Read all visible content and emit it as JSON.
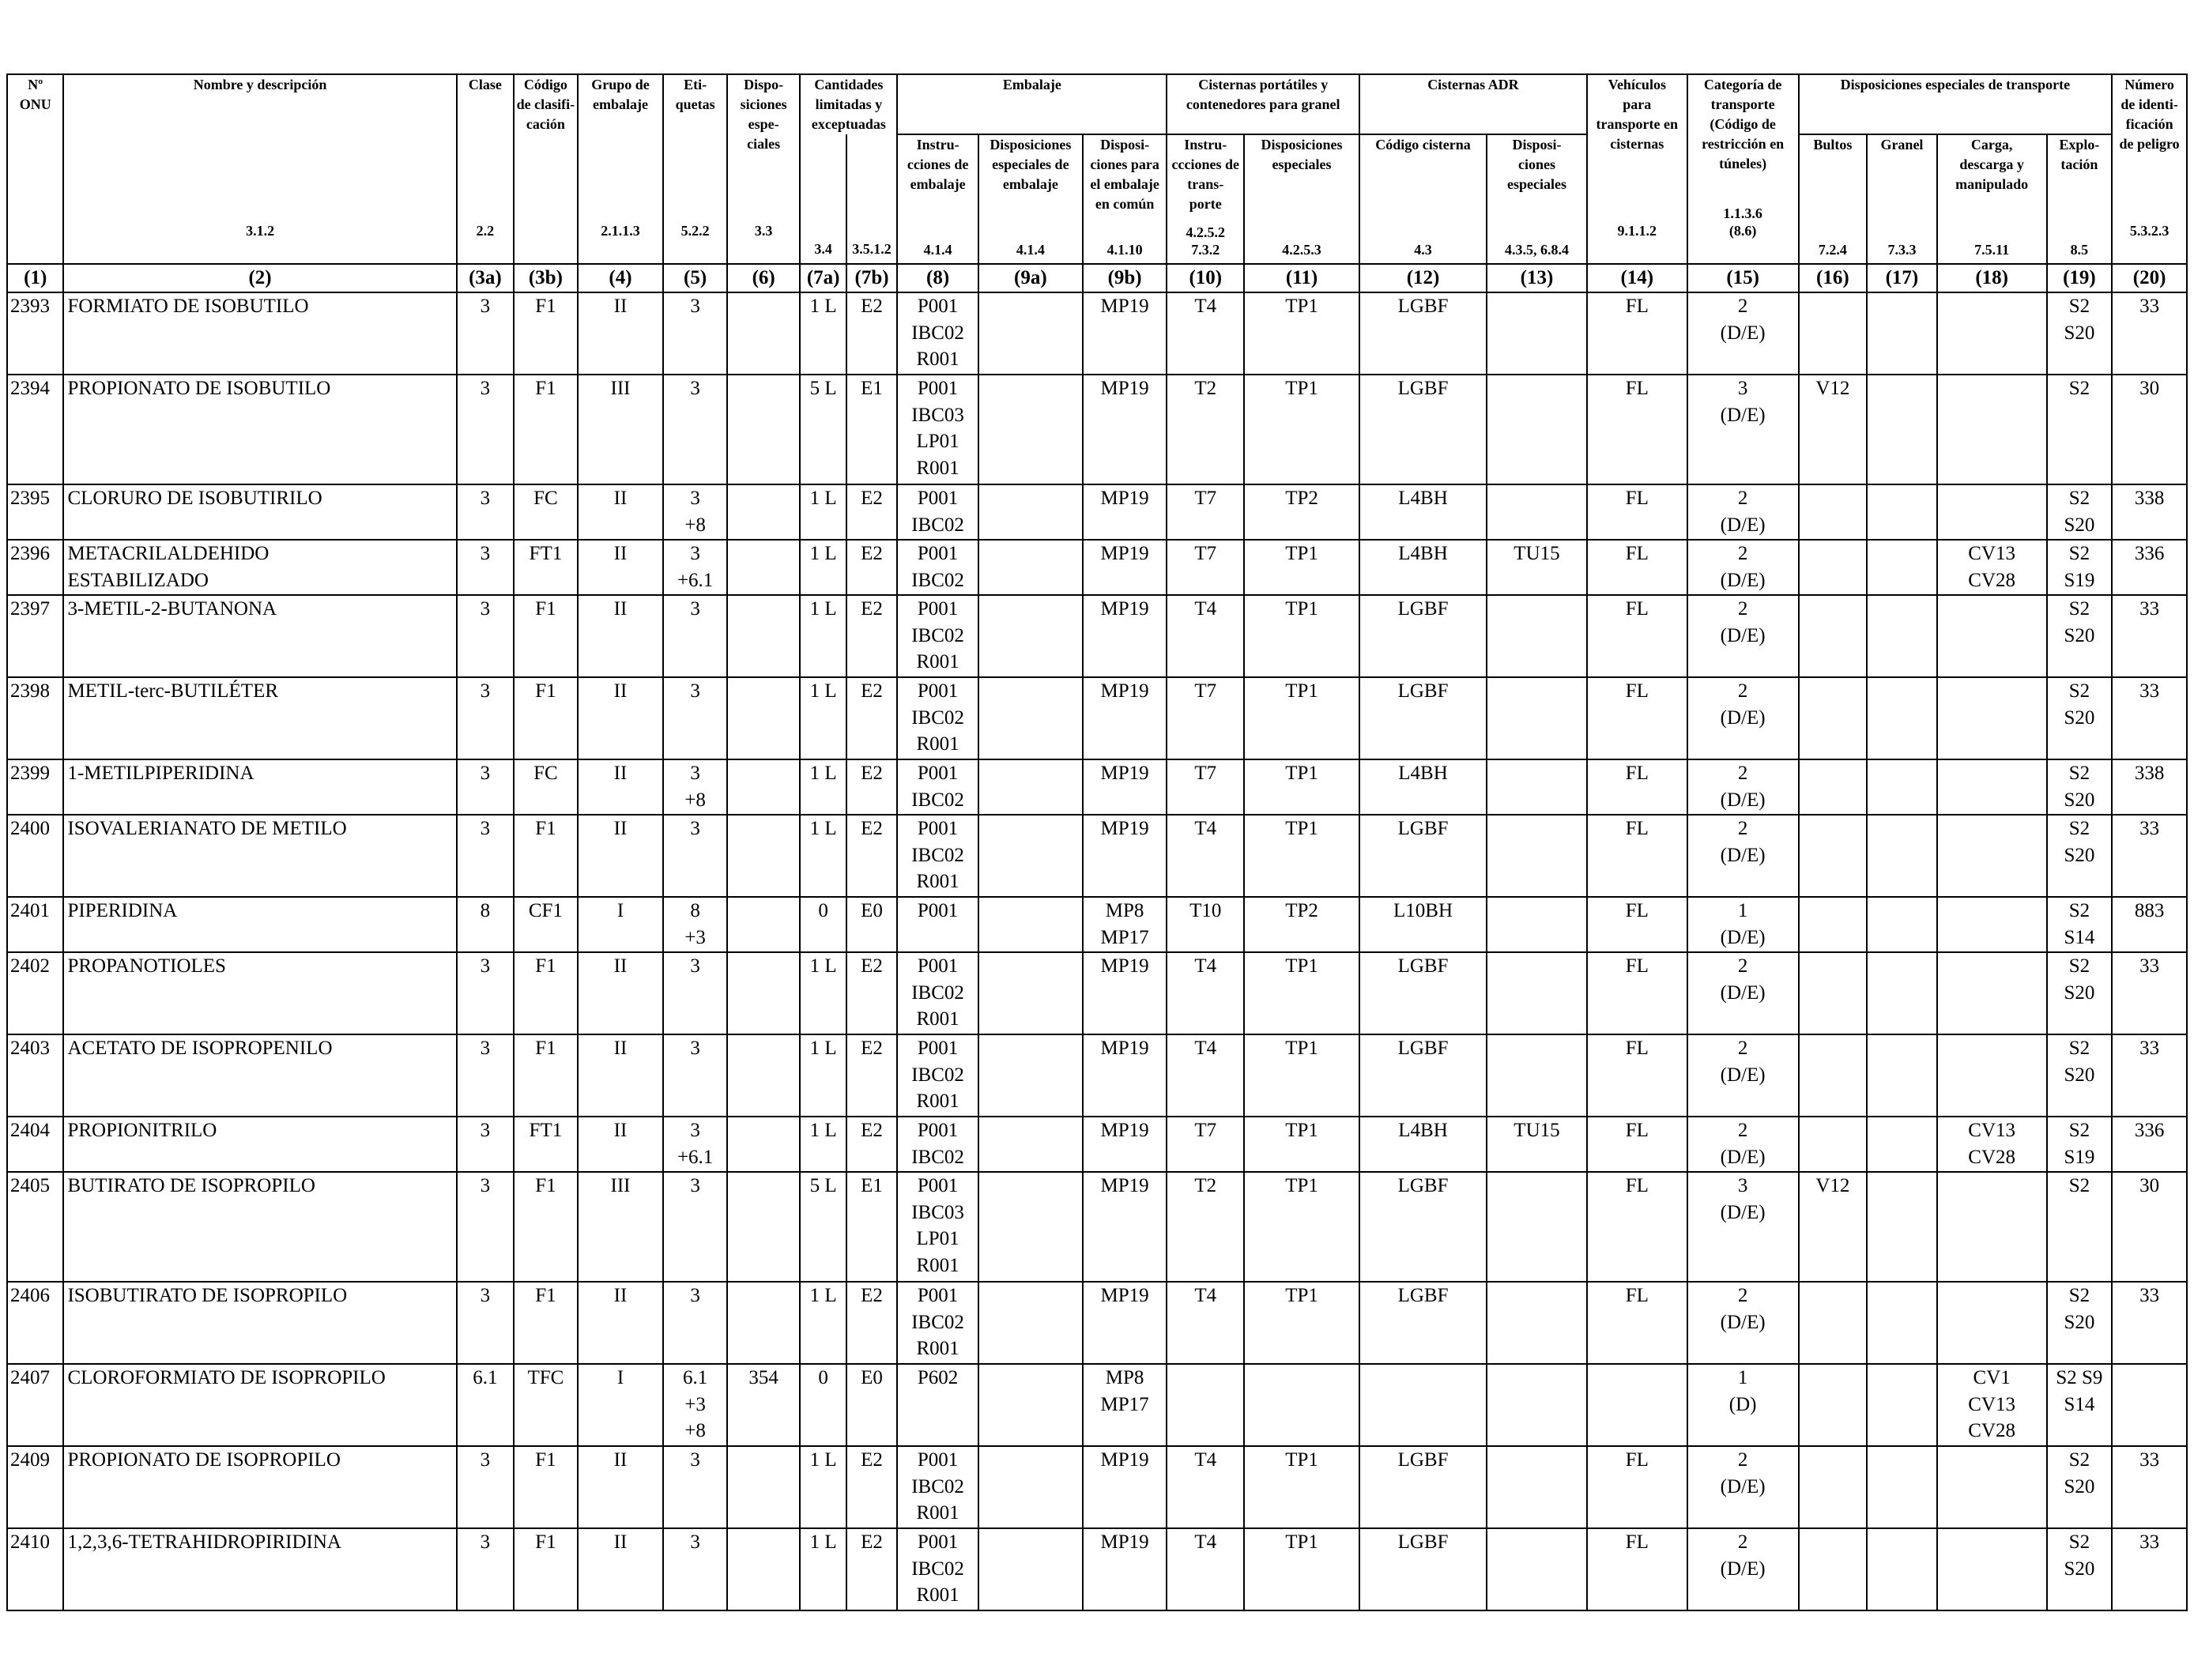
{
  "columns": [
    {
      "key": "un",
      "title": "Nº\nONU",
      "ref": "",
      "num": "(1)"
    },
    {
      "key": "name",
      "title": "Nombre y descripción",
      "ref": "3.1.2",
      "num": "(2)"
    },
    {
      "key": "clase",
      "title": "Clase",
      "ref": "2.2",
      "num": "(3a)"
    },
    {
      "key": "codigo",
      "title": "Código\nde clasifi-\ncación",
      "ref": "",
      "num": "(3b)"
    },
    {
      "key": "grupo",
      "title": "Grupo de\nembalaje",
      "ref": "2.1.1.3",
      "num": "(4)"
    },
    {
      "key": "etiquetas",
      "title": "Eti-\nquetas",
      "ref": "5.2.2",
      "num": "(5)"
    },
    {
      "key": "disp",
      "title": "Dispo-\nsiciones\nespe-\nciales",
      "ref": "3.3",
      "num": "(6)"
    },
    {
      "key": "lq",
      "title": "",
      "ref": "3.4",
      "num": "(7a)"
    },
    {
      "key": "eq",
      "title": "",
      "ref": "3.5.1.2",
      "num": "(7b)"
    },
    {
      "key": "instr",
      "title": "Instru-\ncciones de\nembalaje",
      "ref": "4.1.4",
      "num": "(8)"
    },
    {
      "key": "dispemb",
      "title": "Disposiciones\nespeciales de\nembalaje",
      "ref": "4.1.4",
      "num": "(9a)"
    },
    {
      "key": "comun",
      "title": "Disposi-\nciones para\nel embalaje\nen común",
      "ref": "4.1.10",
      "num": "(9b)"
    },
    {
      "key": "tinstr",
      "title": "Instru-\nccciones de\ntrans-\nporte",
      "ref": "4.2.5.2\n7.3.2",
      "num": "(10)"
    },
    {
      "key": "tdisp",
      "title": "Disposiciones\nespeciales",
      "ref": "4.2.5.3",
      "num": "(11)"
    },
    {
      "key": "cisterna",
      "title": "Código cisterna",
      "ref": "4.3",
      "num": "(12)"
    },
    {
      "key": "cdisp",
      "title": "Disposi-\nciones\nespeciales",
      "ref": "4.3.5, 6.8.4",
      "num": "(13)"
    },
    {
      "key": "vehiculos",
      "title": "Vehículos\npara\ntransporte en\ncisternas",
      "ref": "9.1.1.2",
      "num": "(14)"
    },
    {
      "key": "categoria",
      "title": "Categoría de\ntransporte\n(Código de\nrestricción en\ntúneles)",
      "ref": "1.1.3.6\n(8.6)",
      "num": "(15)"
    },
    {
      "key": "bultos",
      "title": "Bultos",
      "ref": "7.2.4",
      "num": "(16)"
    },
    {
      "key": "granel",
      "title": "Granel",
      "ref": "7.3.3",
      "num": "(17)"
    },
    {
      "key": "carga",
      "title": "Carga,\ndescarga y\nmanipulado",
      "ref": "7.5.11",
      "num": "(18)"
    },
    {
      "key": "explo",
      "title": "Explo-\ntación",
      "ref": "8.5",
      "num": "(19)"
    },
    {
      "key": "peligro",
      "title": "Número\nde identi-\nficación\nde peligro",
      "ref": "5.3.2.3",
      "num": "(20)"
    }
  ],
  "groups": {
    "cantidades": "Cantidades\nlimitadas y\nexceptuadas",
    "embalaje": "Embalaje",
    "portatiles": "Cisternas portátiles y\ncontenedores para granel",
    "adr": "Cisternas ADR",
    "transporte": "Disposiciones especiales de transporte"
  },
  "rows": [
    {
      "un": "2393",
      "name": "FORMIATO DE ISOBUTILO",
      "clase": "3",
      "codigo": "F1",
      "grupo": "II",
      "etiquetas": "3",
      "disp": "",
      "lq": "1 L",
      "eq": "E2",
      "instr": "P001\nIBC02\nR001",
      "dispemb": "",
      "comun": "MP19",
      "tinstr": "T4",
      "tdisp": "TP1",
      "cisterna": "LGBF",
      "cdisp": "",
      "vehiculos": "FL",
      "categoria": "2\n(D/E)",
      "bultos": "",
      "granel": "",
      "carga": "",
      "explo": "S2\nS20",
      "peligro": "33"
    },
    {
      "un": "2394",
      "name": "PROPIONATO DE ISOBUTILO",
      "clase": "3",
      "codigo": "F1",
      "grupo": "III",
      "etiquetas": "3",
      "disp": "",
      "lq": "5 L",
      "eq": "E1",
      "instr": "P001\nIBC03\nLP01\nR001",
      "dispemb": "",
      "comun": "MP19",
      "tinstr": "T2",
      "tdisp": "TP1",
      "cisterna": "LGBF",
      "cdisp": "",
      "vehiculos": "FL",
      "categoria": "3\n(D/E)",
      "bultos": "V12",
      "granel": "",
      "carga": "",
      "explo": "S2",
      "peligro": "30"
    },
    {
      "un": "2395",
      "name": "CLORURO DE ISOBUTIRILO",
      "clase": "3",
      "codigo": "FC",
      "grupo": "II",
      "etiquetas": "3\n+8",
      "disp": "",
      "lq": "1 L",
      "eq": "E2",
      "instr": "P001\nIBC02",
      "dispemb": "",
      "comun": "MP19",
      "tinstr": "T7",
      "tdisp": "TP2",
      "cisterna": "L4BH",
      "cdisp": "",
      "vehiculos": "FL",
      "categoria": "2\n(D/E)",
      "bultos": "",
      "granel": "",
      "carga": "",
      "explo": "S2\nS20",
      "peligro": "338"
    },
    {
      "un": "2396",
      "name": "METACRILALDEHIDO\nESTABILIZADO",
      "clase": "3",
      "codigo": "FT1",
      "grupo": "II",
      "etiquetas": "3\n+6.1",
      "disp": "",
      "lq": "1 L",
      "eq": "E2",
      "instr": "P001\nIBC02",
      "dispemb": "",
      "comun": "MP19",
      "tinstr": "T7",
      "tdisp": "TP1",
      "cisterna": "L4BH",
      "cdisp": "TU15",
      "vehiculos": "FL",
      "categoria": "2\n(D/E)",
      "bultos": "",
      "granel": "",
      "carga": "CV13\nCV28",
      "explo": "S2\nS19",
      "peligro": "336"
    },
    {
      "un": "2397",
      "name": "3-METIL-2-BUTANONA",
      "clase": "3",
      "codigo": "F1",
      "grupo": "II",
      "etiquetas": "3",
      "disp": "",
      "lq": "1 L",
      "eq": "E2",
      "instr": "P001\nIBC02\nR001",
      "dispemb": "",
      "comun": "MP19",
      "tinstr": "T4",
      "tdisp": "TP1",
      "cisterna": "LGBF",
      "cdisp": "",
      "vehiculos": "FL",
      "categoria": "2\n(D/E)",
      "bultos": "",
      "granel": "",
      "carga": "",
      "explo": "S2\nS20",
      "peligro": "33"
    },
    {
      "un": "2398",
      "name": "METIL-terc-BUTILÉTER",
      "clase": "3",
      "codigo": "F1",
      "grupo": "II",
      "etiquetas": "3",
      "disp": "",
      "lq": "1 L",
      "eq": "E2",
      "instr": "P001\nIBC02\nR001",
      "dispemb": "",
      "comun": "MP19",
      "tinstr": "T7",
      "tdisp": "TP1",
      "cisterna": "LGBF",
      "cdisp": "",
      "vehiculos": "FL",
      "categoria": "2\n(D/E)",
      "bultos": "",
      "granel": "",
      "carga": "",
      "explo": "S2\nS20",
      "peligro": "33"
    },
    {
      "un": "2399",
      "name": "1-METILPIPERIDINA",
      "clase": "3",
      "codigo": "FC",
      "grupo": "II",
      "etiquetas": "3\n+8",
      "disp": "",
      "lq": "1 L",
      "eq": "E2",
      "instr": "P001\nIBC02",
      "dispemb": "",
      "comun": "MP19",
      "tinstr": "T7",
      "tdisp": "TP1",
      "cisterna": "L4BH",
      "cdisp": "",
      "vehiculos": "FL",
      "categoria": "2\n(D/E)",
      "bultos": "",
      "granel": "",
      "carga": "",
      "explo": "S2\nS20",
      "peligro": "338"
    },
    {
      "un": "2400",
      "name": "ISOVALERIANATO DE METILO",
      "clase": "3",
      "codigo": "F1",
      "grupo": "II",
      "etiquetas": "3",
      "disp": "",
      "lq": "1 L",
      "eq": "E2",
      "instr": "P001\nIBC02\nR001",
      "dispemb": "",
      "comun": "MP19",
      "tinstr": "T4",
      "tdisp": "TP1",
      "cisterna": "LGBF",
      "cdisp": "",
      "vehiculos": "FL",
      "categoria": "2\n(D/E)",
      "bultos": "",
      "granel": "",
      "carga": "",
      "explo": "S2\nS20",
      "peligro": "33"
    },
    {
      "un": "2401",
      "name": "PIPERIDINA",
      "clase": "8",
      "codigo": "CF1",
      "grupo": "I",
      "etiquetas": "8\n+3",
      "disp": "",
      "lq": "0",
      "eq": "E0",
      "instr": "P001",
      "dispemb": "",
      "comun": "MP8\nMP17",
      "tinstr": "T10",
      "tdisp": "TP2",
      "cisterna": "L10BH",
      "cdisp": "",
      "vehiculos": "FL",
      "categoria": "1\n(D/E)",
      "bultos": "",
      "granel": "",
      "carga": "",
      "explo": "S2\nS14",
      "peligro": "883"
    },
    {
      "un": "2402",
      "name": "PROPANOTIOLES",
      "clase": "3",
      "codigo": "F1",
      "grupo": "II",
      "etiquetas": "3",
      "disp": "",
      "lq": "1 L",
      "eq": "E2",
      "instr": "P001\nIBC02\nR001",
      "dispemb": "",
      "comun": "MP19",
      "tinstr": "T4",
      "tdisp": "TP1",
      "cisterna": "LGBF",
      "cdisp": "",
      "vehiculos": "FL",
      "categoria": "2\n(D/E)",
      "bultos": "",
      "granel": "",
      "carga": "",
      "explo": "S2\nS20",
      "peligro": "33"
    },
    {
      "un": "2403",
      "name": "ACETATO DE ISOPROPENILO",
      "clase": "3",
      "codigo": "F1",
      "grupo": "II",
      "etiquetas": "3",
      "disp": "",
      "lq": "1 L",
      "eq": "E2",
      "instr": "P001\nIBC02\nR001",
      "dispemb": "",
      "comun": "MP19",
      "tinstr": "T4",
      "tdisp": "TP1",
      "cisterna": "LGBF",
      "cdisp": "",
      "vehiculos": "FL",
      "categoria": "2\n(D/E)",
      "bultos": "",
      "granel": "",
      "carga": "",
      "explo": "S2\nS20",
      "peligro": "33"
    },
    {
      "un": "2404",
      "name": "PROPIONITRILO",
      "clase": "3",
      "codigo": "FT1",
      "grupo": "II",
      "etiquetas": "3\n+6.1",
      "disp": "",
      "lq": "1 L",
      "eq": "E2",
      "instr": "P001\nIBC02",
      "dispemb": "",
      "comun": "MP19",
      "tinstr": "T7",
      "tdisp": "TP1",
      "cisterna": "L4BH",
      "cdisp": "TU15",
      "vehiculos": "FL",
      "categoria": "2\n(D/E)",
      "bultos": "",
      "granel": "",
      "carga": "CV13\nCV28",
      "explo": "S2\nS19",
      "peligro": "336"
    },
    {
      "un": "2405",
      "name": "BUTIRATO DE ISOPROPILO",
      "clase": "3",
      "codigo": "F1",
      "grupo": "III",
      "etiquetas": "3",
      "disp": "",
      "lq": "5 L",
      "eq": "E1",
      "instr": "P001\nIBC03\nLP01\nR001",
      "dispemb": "",
      "comun": "MP19",
      "tinstr": "T2",
      "tdisp": "TP1",
      "cisterna": "LGBF",
      "cdisp": "",
      "vehiculos": "FL",
      "categoria": "3\n(D/E)",
      "bultos": "V12",
      "granel": "",
      "carga": "",
      "explo": "S2",
      "peligro": "30"
    },
    {
      "un": "2406",
      "name": "ISOBUTIRATO DE ISOPROPILO",
      "clase": "3",
      "codigo": "F1",
      "grupo": "II",
      "etiquetas": "3",
      "disp": "",
      "lq": "1 L",
      "eq": "E2",
      "instr": "P001\nIBC02\nR001",
      "dispemb": "",
      "comun": "MP19",
      "tinstr": "T4",
      "tdisp": "TP1",
      "cisterna": "LGBF",
      "cdisp": "",
      "vehiculos": "FL",
      "categoria": "2\n(D/E)",
      "bultos": "",
      "granel": "",
      "carga": "",
      "explo": "S2\nS20",
      "peligro": "33"
    },
    {
      "un": "2407",
      "name": "CLOROFORMIATO DE ISOPROPILO",
      "clase": "6.1",
      "codigo": "TFC",
      "grupo": "I",
      "etiquetas": "6.1\n+3\n+8",
      "disp": "354",
      "lq": "0",
      "eq": "E0",
      "instr": "P602",
      "dispemb": "",
      "comun": "MP8\nMP17",
      "tinstr": "",
      "tdisp": "",
      "cisterna": "",
      "cdisp": "",
      "vehiculos": "",
      "categoria": "1\n(D)",
      "bultos": "",
      "granel": "",
      "carga": "CV1\nCV13\nCV28",
      "explo": "S2 S9\nS14",
      "peligro": ""
    },
    {
      "un": "2409",
      "name": "PROPIONATO DE ISOPROPILO",
      "clase": "3",
      "codigo": "F1",
      "grupo": "II",
      "etiquetas": "3",
      "disp": "",
      "lq": "1 L",
      "eq": "E2",
      "instr": "P001\nIBC02\nR001",
      "dispemb": "",
      "comun": "MP19",
      "tinstr": "T4",
      "tdisp": "TP1",
      "cisterna": "LGBF",
      "cdisp": "",
      "vehiculos": "FL",
      "categoria": "2\n(D/E)",
      "bultos": "",
      "granel": "",
      "carga": "",
      "explo": "S2\nS20",
      "peligro": "33"
    },
    {
      "un": "2410",
      "name": "1,2,3,6-TETRAHIDROPIRIDINA",
      "clase": "3",
      "codigo": "F1",
      "grupo": "II",
      "etiquetas": "3",
      "disp": "",
      "lq": "1 L",
      "eq": "E2",
      "instr": "P001\nIBC02\nR001",
      "dispemb": "",
      "comun": "MP19",
      "tinstr": "T4",
      "tdisp": "TP1",
      "cisterna": "LGBF",
      "cdisp": "",
      "vehiculos": "FL",
      "categoria": "2\n(D/E)",
      "bultos": "",
      "granel": "",
      "carga": "",
      "explo": "S2\nS20",
      "peligro": "33"
    }
  ]
}
